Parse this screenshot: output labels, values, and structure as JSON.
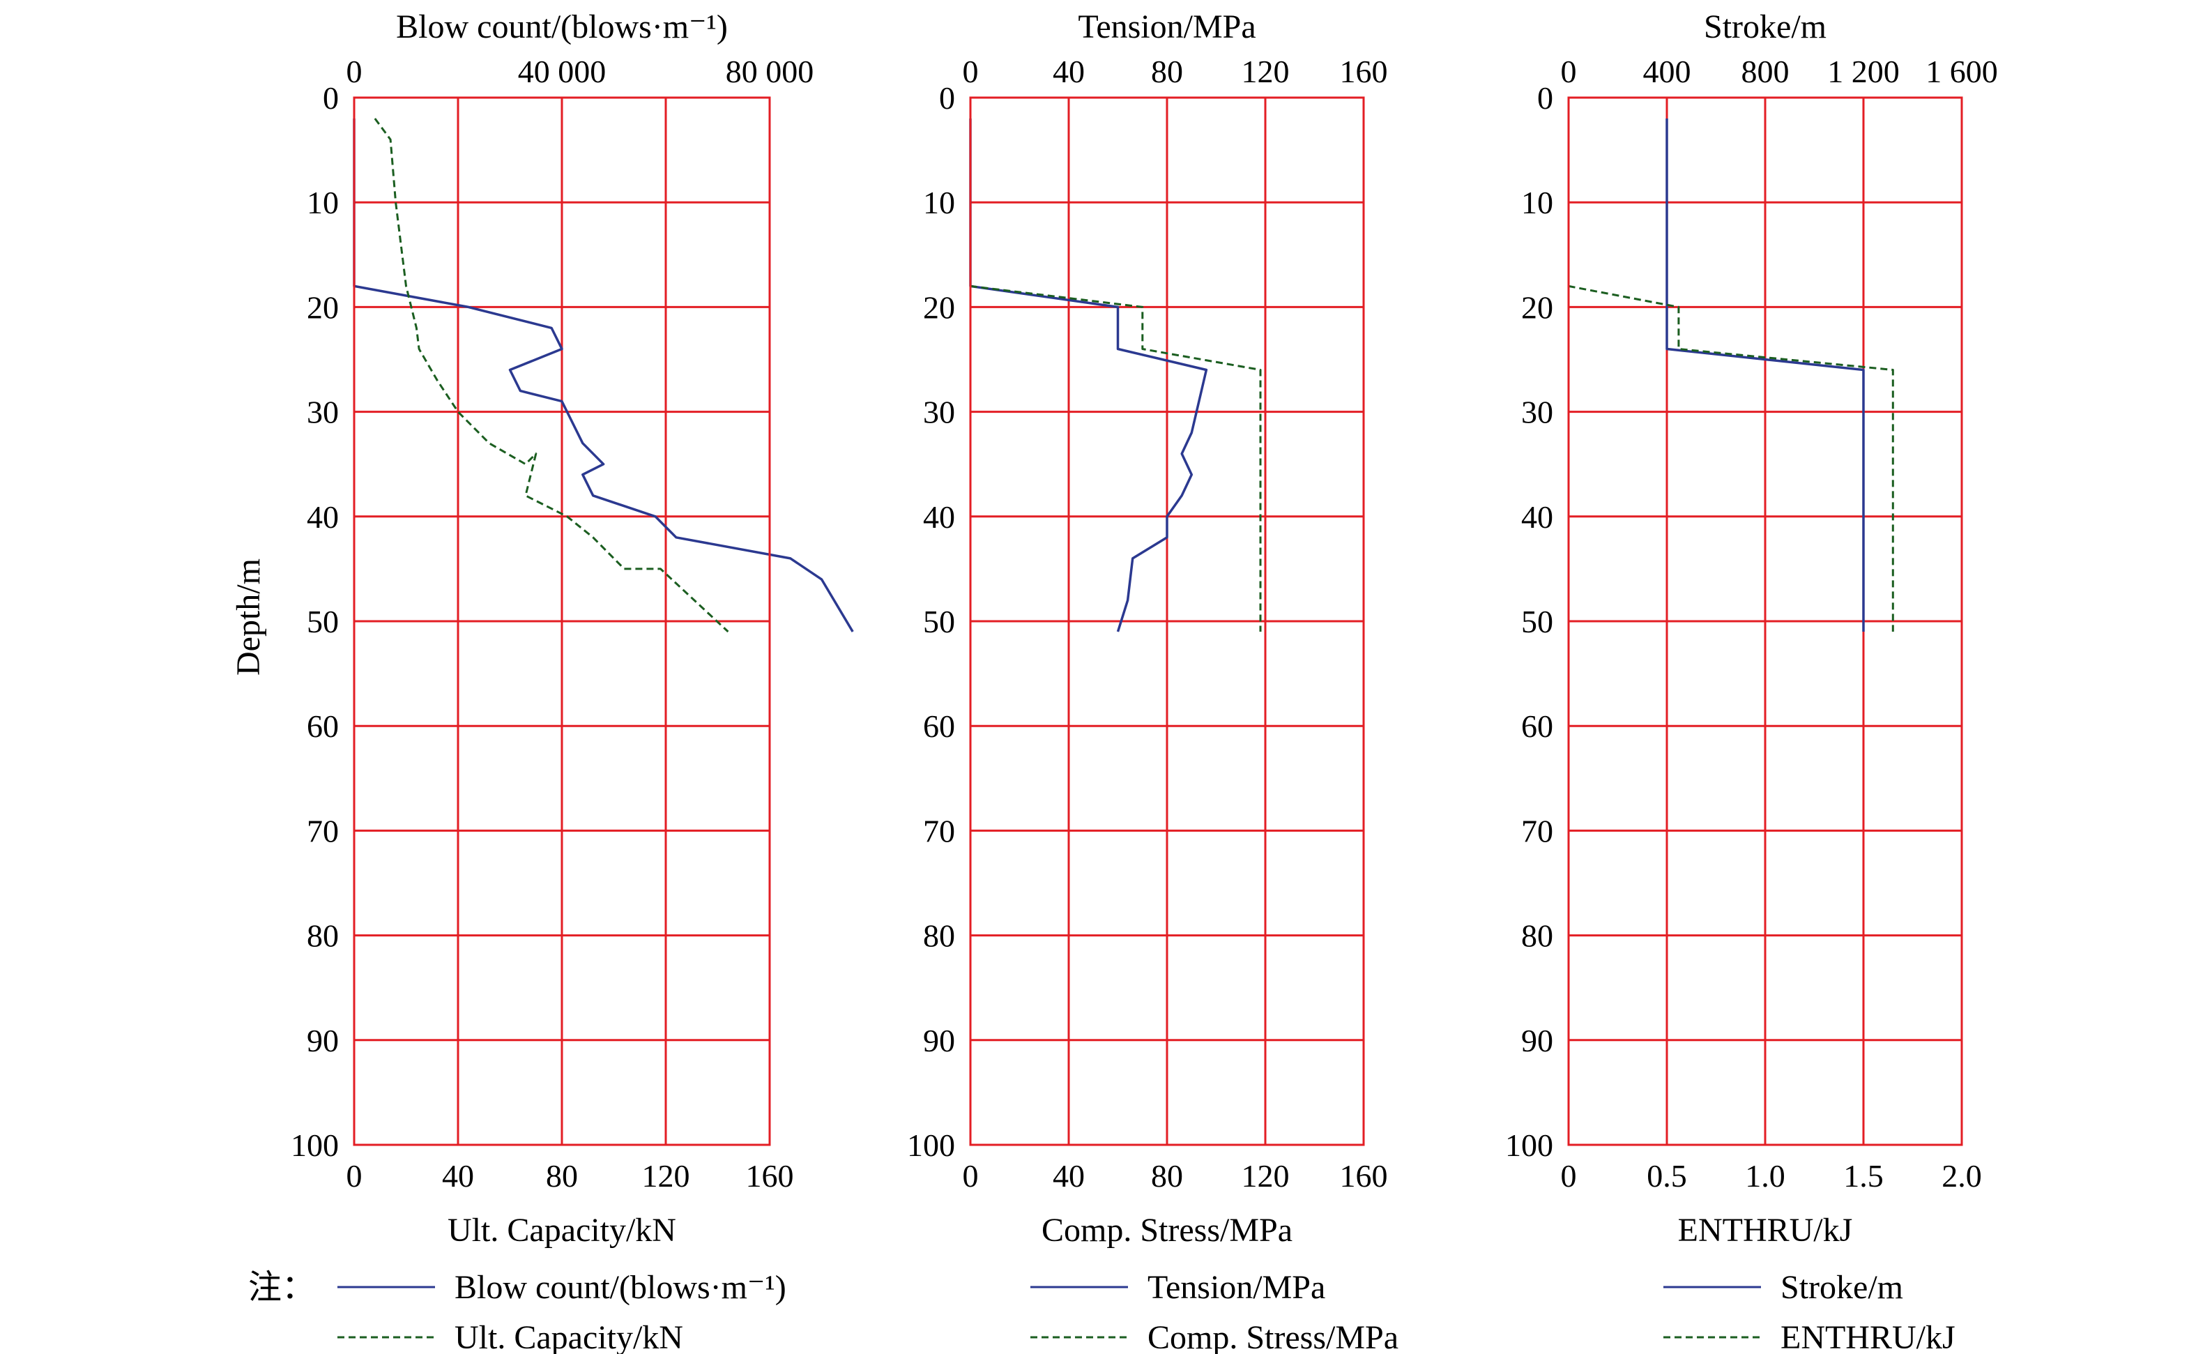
{
  "chart_data": [
    {
      "type": "line",
      "y_axis": {
        "label": "Depth/m",
        "range": [
          0,
          100
        ],
        "ticks": [
          "0",
          "10",
          "20",
          "30",
          "40",
          "50",
          "60",
          "70",
          "80",
          "90",
          "100"
        ]
      },
      "top_axis": {
        "label": "Blow count/(blows·m⁻¹)",
        "range": [
          0,
          80000
        ],
        "ticks": [
          {
            "value": 0,
            "label": "0"
          },
          {
            "value": 40000,
            "label": "40 000"
          },
          {
            "value": 80000,
            "label": "80 000"
          }
        ]
      },
      "bottom_axis": {
        "label": "Ult. Capacity/kN",
        "range": [
          0,
          160
        ],
        "ticks": [
          {
            "value": 0,
            "label": "0"
          },
          {
            "value": 40,
            "label": "40"
          },
          {
            "value": 80,
            "label": "80"
          },
          {
            "value": 120,
            "label": "120"
          },
          {
            "value": 160,
            "label": "160"
          }
        ]
      },
      "grid": true,
      "series": [
        {
          "name": "Blow count/(blows·m⁻¹)",
          "axis": "top",
          "style": "solid",
          "color": "#2b3990",
          "points": [
            [
              0,
              2
            ],
            [
              0,
              18
            ],
            [
              22000,
              20
            ],
            [
              38000,
              22
            ],
            [
              40000,
              24
            ],
            [
              30000,
              26
            ],
            [
              32000,
              28
            ],
            [
              40000,
              29
            ],
            [
              44000,
              33
            ],
            [
              48000,
              35
            ],
            [
              44000,
              36
            ],
            [
              46000,
              38
            ],
            [
              58000,
              40
            ],
            [
              62000,
              42
            ],
            [
              84000,
              44
            ],
            [
              90000,
              46
            ],
            [
              96000,
              51
            ]
          ]
        },
        {
          "name": "Ult. Capacity/kN",
          "axis": "bottom",
          "style": "dashed",
          "color": "#1b5e20",
          "points": [
            [
              8,
              2
            ],
            [
              14,
              4
            ],
            [
              16,
              10
            ],
            [
              20,
              18
            ],
            [
              24,
              22
            ],
            [
              25,
              24
            ],
            [
              32,
              27
            ],
            [
              40,
              30
            ],
            [
              52,
              33
            ],
            [
              66,
              35
            ],
            [
              70,
              34
            ],
            [
              66,
              38
            ],
            [
              82,
              40
            ],
            [
              92,
              42
            ],
            [
              104,
              45
            ],
            [
              118,
              45
            ],
            [
              144,
              51
            ]
          ]
        }
      ]
    },
    {
      "type": "line",
      "y_axis": {
        "label": "",
        "range": [
          0,
          100
        ],
        "ticks": [
          "0",
          "10",
          "20",
          "30",
          "40",
          "50",
          "60",
          "70",
          "80",
          "90",
          "100"
        ]
      },
      "top_axis": {
        "label": "Tension/MPa",
        "range": [
          0,
          160
        ],
        "ticks": [
          {
            "value": 0,
            "label": "0"
          },
          {
            "value": 40,
            "label": "40"
          },
          {
            "value": 80,
            "label": "80"
          },
          {
            "value": 120,
            "label": "120"
          },
          {
            "value": 160,
            "label": "160"
          }
        ]
      },
      "bottom_axis": {
        "label": "Comp. Stress/MPa",
        "range": [
          0,
          160
        ],
        "ticks": [
          {
            "value": 0,
            "label": "0"
          },
          {
            "value": 40,
            "label": "40"
          },
          {
            "value": 80,
            "label": "80"
          },
          {
            "value": 120,
            "label": "120"
          },
          {
            "value": 160,
            "label": "160"
          }
        ]
      },
      "grid": true,
      "series": [
        {
          "name": "Tension/MPa",
          "axis": "top",
          "style": "solid",
          "color": "#2b3990",
          "points": [
            [
              0,
              2
            ],
            [
              0,
              18
            ],
            [
              60,
              20
            ],
            [
              60,
              24
            ],
            [
              96,
              26
            ],
            [
              90,
              32
            ],
            [
              86,
              34
            ],
            [
              90,
              36
            ],
            [
              86,
              38
            ],
            [
              80,
              40
            ],
            [
              80,
              42
            ],
            [
              66,
              44
            ],
            [
              64,
              48
            ],
            [
              60,
              51
            ]
          ]
        },
        {
          "name": "Comp. Stress/MPa",
          "axis": "bottom",
          "style": "dashed",
          "color": "#1b5e20",
          "points": [
            [
              0,
              2
            ],
            [
              0,
              18
            ],
            [
              70,
              20
            ],
            [
              70,
              24
            ],
            [
              118,
              26
            ],
            [
              118,
              51
            ]
          ]
        }
      ]
    },
    {
      "type": "line",
      "y_axis": {
        "label": "",
        "range": [
          0,
          100
        ],
        "ticks": [
          "0",
          "10",
          "20",
          "30",
          "40",
          "50",
          "60",
          "70",
          "80",
          "90",
          "100"
        ]
      },
      "top_axis": {
        "label": "Stroke/m",
        "range": [
          0,
          1600
        ],
        "ticks": [
          {
            "value": 0,
            "label": "0"
          },
          {
            "value": 400,
            "label": "400"
          },
          {
            "value": 800,
            "label": "800"
          },
          {
            "value": 1200,
            "label": "1 200"
          },
          {
            "value": 1600,
            "label": "1 600"
          }
        ]
      },
      "bottom_axis": {
        "label": "ENTHRU/kJ",
        "range": [
          0,
          2
        ],
        "ticks": [
          {
            "value": 0,
            "label": "0"
          },
          {
            "value": 0.5,
            "label": "0.5"
          },
          {
            "value": 1.0,
            "label": "1.0"
          },
          {
            "value": 1.5,
            "label": "1.5"
          },
          {
            "value": 2.0,
            "label": "2.0"
          }
        ]
      },
      "grid": true,
      "series": [
        {
          "name": "Stroke/m",
          "axis": "top",
          "style": "solid",
          "color": "#2b3990",
          "points": [
            [
              400,
              2
            ],
            [
              400,
              24
            ],
            [
              1200,
              26
            ],
            [
              1200,
              51
            ]
          ]
        },
        {
          "name": "ENTHRU/kJ",
          "axis": "bottom",
          "style": "dashed",
          "color": "#1b5e20",
          "points": [
            [
              0,
              2
            ],
            [
              0,
              18
            ],
            [
              0.56,
              20
            ],
            [
              0.56,
              24
            ],
            [
              1.65,
              26
            ],
            [
              1.65,
              51
            ]
          ]
        }
      ]
    }
  ],
  "legend": {
    "note_label": "注：",
    "groups": [
      [
        {
          "label": "Blow count/(blows·m⁻¹)",
          "style": "solid"
        },
        {
          "label": "Ult. Capacity/kN",
          "style": "dashed"
        }
      ],
      [
        {
          "label": "Tension/MPa",
          "style": "solid"
        },
        {
          "label": "Comp. Stress/MPa",
          "style": "dashed"
        }
      ],
      [
        {
          "label": "Stroke/m",
          "style": "solid"
        },
        {
          "label": "ENTHRU/kJ",
          "style": "dashed"
        }
      ]
    ]
  },
  "colors": {
    "grid": "#e31e24",
    "solid_series": "#2b3990",
    "dashed_series": "#1b5e20"
  }
}
